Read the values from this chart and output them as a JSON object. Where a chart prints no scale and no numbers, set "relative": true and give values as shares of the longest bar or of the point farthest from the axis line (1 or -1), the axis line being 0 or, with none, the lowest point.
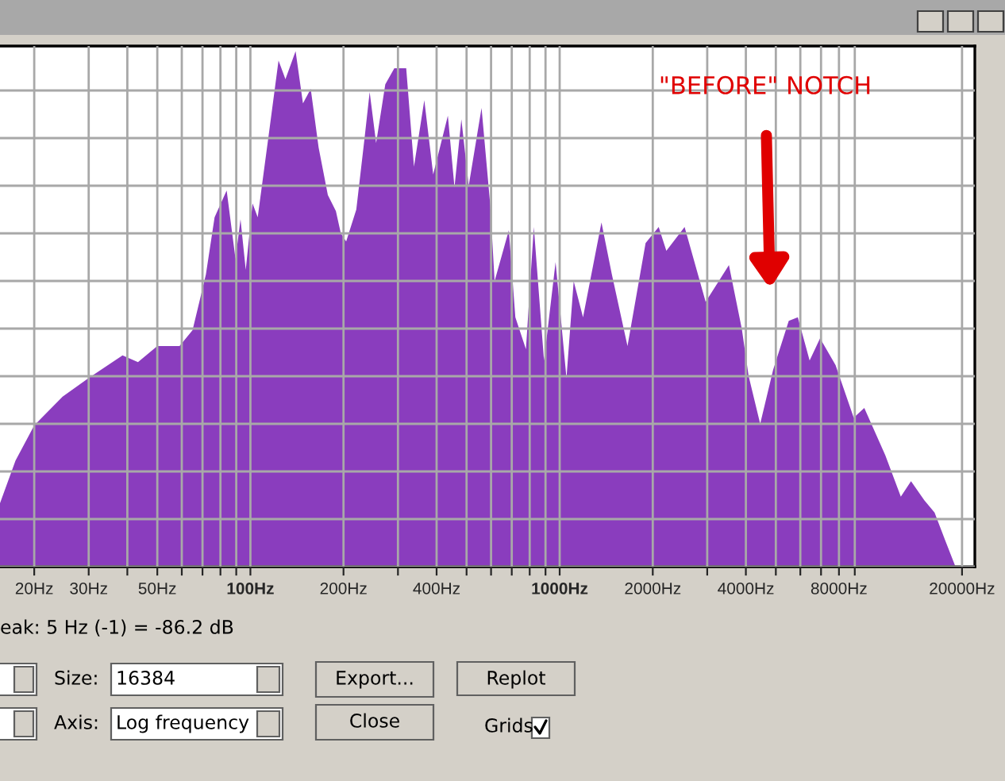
{
  "chart_data": {
    "type": "area",
    "relative": true,
    "log": "x",
    "grid": true,
    "xlim": [
      15.5,
      22000
    ],
    "xticks": [
      {
        "value": 20,
        "label": "20Hz"
      },
      {
        "value": 30,
        "label": "30Hz"
      },
      {
        "value": 40,
        "label": null
      },
      {
        "value": 50,
        "label": "50Hz"
      },
      {
        "value": 60,
        "label": null
      },
      {
        "value": 70,
        "label": null
      },
      {
        "value": 80,
        "label": null
      },
      {
        "value": 90,
        "label": null
      },
      {
        "value": 100,
        "label": "100Hz"
      },
      {
        "value": 200,
        "label": "200Hz"
      },
      {
        "value": 300,
        "label": null
      },
      {
        "value": 400,
        "label": "400Hz"
      },
      {
        "value": 500,
        "label": null
      },
      {
        "value": 600,
        "label": null
      },
      {
        "value": 700,
        "label": null
      },
      {
        "value": 800,
        "label": null
      },
      {
        "value": 900,
        "label": null
      },
      {
        "value": 1000,
        "label": "1000Hz"
      },
      {
        "value": 2000,
        "label": "2000Hz"
      },
      {
        "value": 3000,
        "label": null
      },
      {
        "value": 4000,
        "label": "4000Hz"
      },
      {
        "value": 5000,
        "label": null
      },
      {
        "value": 6000,
        "label": null
      },
      {
        "value": 7000,
        "label": null
      },
      {
        "value": 8000,
        "label": "8000Hz"
      },
      {
        "value": 9000,
        "label": null
      },
      {
        "value": 20000,
        "label": "20000Hz"
      }
    ],
    "tick_labels": "x",
    "series": [
      {
        "color": "#8a3dbe",
        "x": [
          15.5,
          17.4,
          20,
          24.7,
          30,
          38.6,
          43.3,
          50,
          59,
          65,
          71.8,
          76.6,
          83.8,
          89.5,
          92.9,
          96.6,
          101.6,
          105.6,
          115.5,
          123.3,
          129.8,
          140,
          147.9,
          156.7,
          166.2,
          178,
          189,
          196,
          204,
          220,
          234,
          243,
          255,
          273,
          292,
          319,
          338,
          365,
          390,
          435,
          457,
          481,
          508,
          559,
          597,
          616,
          685,
          719,
          778,
          825,
          890,
          970,
          1052,
          1110,
          1190,
          1365,
          1475,
          1657,
          1896,
          2090,
          2213,
          2535,
          2965,
          3526,
          3880,
          4083,
          4450,
          4900,
          5505,
          5888,
          6430,
          6950,
          7800,
          8930,
          9660,
          11300,
          12680,
          13680,
          15100,
          16300,
          17620,
          19050
        ],
        "values": [
          0.123,
          0.206,
          0.274,
          0.33,
          0.366,
          0.41,
          0.397,
          0.428,
          0.428,
          0.459,
          0.567,
          0.678,
          0.73,
          0.597,
          0.674,
          0.576,
          0.705,
          0.678,
          0.853,
          0.982,
          0.946,
          1.0,
          0.899,
          0.927,
          0.813,
          0.721,
          0.69,
          0.647,
          0.631,
          0.693,
          0.832,
          0.921,
          0.822,
          0.936,
          0.967,
          0.967,
          0.776,
          0.905,
          0.761,
          0.875,
          0.736,
          0.868,
          0.739,
          0.89,
          0.699,
          0.554,
          0.653,
          0.484,
          0.422,
          0.659,
          0.4,
          0.591,
          0.366,
          0.554,
          0.484,
          0.668,
          0.567,
          0.428,
          0.628,
          0.659,
          0.613,
          0.659,
          0.514,
          0.585,
          0.462,
          0.37,
          0.277,
          0.382,
          0.477,
          0.484,
          0.4,
          0.443,
          0.391,
          0.289,
          0.308,
          0.216,
          0.136,
          0.166,
          0.129,
          0.105,
          0.052,
          0.0
        ]
      }
    ],
    "annotations": [
      "\"BEFORE\" NOTCH",
      "eak: 5 Hz (-1) = -86.2 dB",
      "Size:",
      "16384",
      "Export...",
      "Replot",
      "Axis:",
      "Log frequency",
      "Close",
      "Grids"
    ]
  }
}
